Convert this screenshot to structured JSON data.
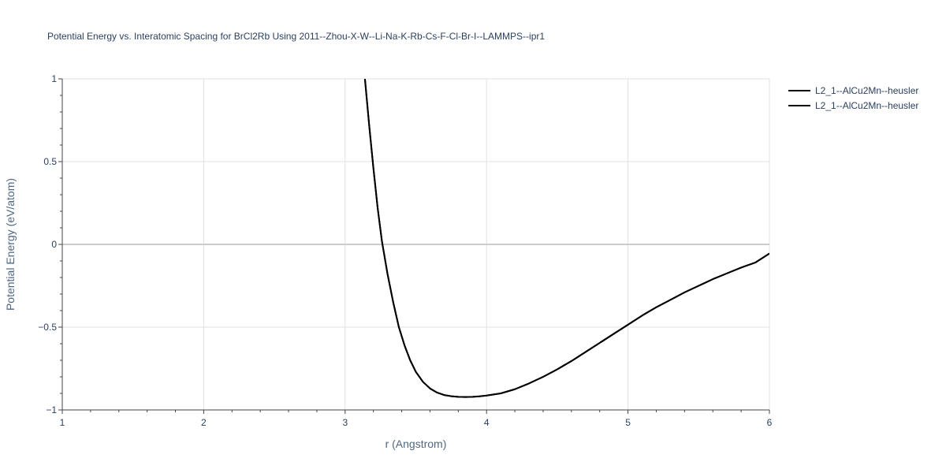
{
  "chart_data": {
    "type": "line",
    "title": "Potential Energy vs. Interatomic Spacing for BrCl2Rb Using 2011--Zhou-X-W--Li-Na-K-Rb-Cs-F-Cl-Br-I--LAMMPS--ipr1",
    "xlabel": "r (Angstrom)",
    "ylabel": "Potential Energy (eV/atom)",
    "xlim": [
      1,
      6
    ],
    "ylim": [
      -1,
      1
    ],
    "xticks": [
      1,
      2,
      3,
      4,
      5,
      6
    ],
    "xtick_labels": [
      "1",
      "2",
      "3",
      "4",
      "5",
      "6"
    ],
    "yticks": [
      -1,
      -0.5,
      0,
      0.5,
      1
    ],
    "ytick_labels": [
      "−1",
      "−0.5",
      "0",
      "0.5",
      "1"
    ],
    "grid": true,
    "legend_position": "top-right",
    "series": [
      {
        "name": "L2_1--AlCu2Mn--heusler",
        "color": "#000000",
        "x": [
          3.14,
          3.17,
          3.2,
          3.23,
          3.26,
          3.3,
          3.34,
          3.38,
          3.42,
          3.46,
          3.5,
          3.55,
          3.6,
          3.65,
          3.7,
          3.75,
          3.8,
          3.85,
          3.9,
          3.95,
          4.0,
          4.1,
          4.2,
          4.3,
          4.4,
          4.5,
          4.6,
          4.7,
          4.8,
          4.9,
          5.0,
          5.1,
          5.2,
          5.3,
          5.4,
          5.5,
          5.6,
          5.7,
          5.8,
          5.9,
          6.0
        ],
        "y": [
          1.0,
          0.72,
          0.46,
          0.22,
          0.02,
          -0.18,
          -0.35,
          -0.5,
          -0.61,
          -0.7,
          -0.77,
          -0.83,
          -0.87,
          -0.895,
          -0.91,
          -0.917,
          -0.921,
          -0.922,
          -0.921,
          -0.918,
          -0.913,
          -0.9,
          -0.875,
          -0.84,
          -0.8,
          -0.755,
          -0.705,
          -0.65,
          -0.595,
          -0.54,
          -0.485,
          -0.43,
          -0.38,
          -0.335,
          -0.29,
          -0.25,
          -0.21,
          -0.175,
          -0.14,
          -0.11,
          -0.055
        ]
      },
      {
        "name": "L2_1--AlCu2Mn--heusler",
        "color": "#000000",
        "x": [
          3.14,
          3.17,
          3.2,
          3.23,
          3.26,
          3.3,
          3.34,
          3.38,
          3.42,
          3.46,
          3.5,
          3.55,
          3.6,
          3.65,
          3.7,
          3.75,
          3.8,
          3.85,
          3.9,
          3.95,
          4.0,
          4.1,
          4.2,
          4.3,
          4.4,
          4.5,
          4.6,
          4.7,
          4.8,
          4.9,
          5.0,
          5.1,
          5.2,
          5.3,
          5.4,
          5.5,
          5.6,
          5.7,
          5.8,
          5.9,
          6.0
        ],
        "y": [
          1.0,
          0.72,
          0.46,
          0.22,
          0.02,
          -0.18,
          -0.35,
          -0.5,
          -0.61,
          -0.7,
          -0.77,
          -0.83,
          -0.87,
          -0.895,
          -0.91,
          -0.917,
          -0.921,
          -0.922,
          -0.921,
          -0.918,
          -0.913,
          -0.9,
          -0.875,
          -0.84,
          -0.8,
          -0.755,
          -0.705,
          -0.65,
          -0.595,
          -0.54,
          -0.485,
          -0.43,
          -0.38,
          -0.335,
          -0.29,
          -0.25,
          -0.21,
          -0.175,
          -0.14,
          -0.11,
          -0.055
        ]
      }
    ]
  }
}
